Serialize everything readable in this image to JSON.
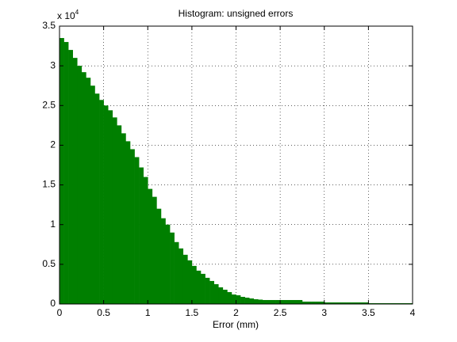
{
  "chart_data": {
    "type": "histogram",
    "title": "Histogram: unsigned errors",
    "x_label": "Error (mm)",
    "y_multiplier": {
      "base": "x 10",
      "exponent": "4"
    },
    "color": "#007f00",
    "grid": true,
    "bins": [
      0,
      0.05,
      0.1,
      0.15,
      0.2,
      0.25,
      0.3,
      0.35,
      0.4,
      0.45,
      0.5,
      0.55,
      0.6,
      0.65,
      0.7,
      0.75,
      0.8,
      0.85,
      0.9,
      0.95,
      1,
      1.05,
      1.1,
      1.15,
      1.2,
      1.25,
      1.3,
      1.35,
      1.4,
      1.45,
      1.5,
      1.55,
      1.6,
      1.65,
      1.7,
      1.75,
      1.8,
      1.85,
      1.9,
      1.95,
      2,
      2.05,
      2.1,
      2.15,
      2.2,
      2.25,
      2.3,
      2.35,
      2.4,
      2.45,
      2.5,
      2.55,
      2.6,
      2.65,
      2.7,
      2.75,
      2.8,
      2.85,
      2.9,
      2.95,
      3,
      3.05,
      3.1,
      3.15,
      3.2,
      3.25,
      3.3,
      3.35,
      3.4,
      3.45,
      3.5,
      3.55,
      3.6,
      3.65,
      3.7,
      3.75,
      3.8,
      3.85,
      3.9,
      3.95,
      4
    ],
    "values": [
      33500,
      33000,
      32000,
      31000,
      30000,
      29200,
      28500,
      27500,
      26500,
      25700,
      25000,
      24400,
      23500,
      22500,
      21500,
      20500,
      19500,
      18500,
      17200,
      16000,
      14500,
      13500,
      12000,
      10800,
      10000,
      9000,
      7800,
      7000,
      6200,
      5500,
      4800,
      4200,
      3800,
      3300,
      2900,
      2500,
      2100,
      1800,
      1500,
      1200,
      1100,
      900,
      800,
      700,
      600,
      550,
      500,
      500,
      500,
      500,
      500,
      500,
      500,
      500,
      500,
      300,
      300,
      300,
      300,
      300,
      200,
      200,
      200,
      200,
      200,
      200,
      200,
      200,
      200,
      200,
      100,
      100,
      100,
      100,
      100,
      100,
      100,
      100,
      100,
      100
    ],
    "xlim": [
      0,
      4
    ],
    "xticks": [
      0,
      0.5,
      1,
      1.5,
      2,
      2.5,
      3,
      3.5,
      4
    ],
    "ylim": [
      0,
      35000
    ],
    "yticks": [
      {
        "value": 0,
        "label": "0"
      },
      {
        "value": 5000,
        "label": "0.5"
      },
      {
        "value": 10000,
        "label": "1"
      },
      {
        "value": 15000,
        "label": "1.5"
      },
      {
        "value": 20000,
        "label": "2"
      },
      {
        "value": 25000,
        "label": "2.5"
      },
      {
        "value": 30000,
        "label": "3"
      },
      {
        "value": 35000,
        "label": "3.5"
      }
    ]
  }
}
